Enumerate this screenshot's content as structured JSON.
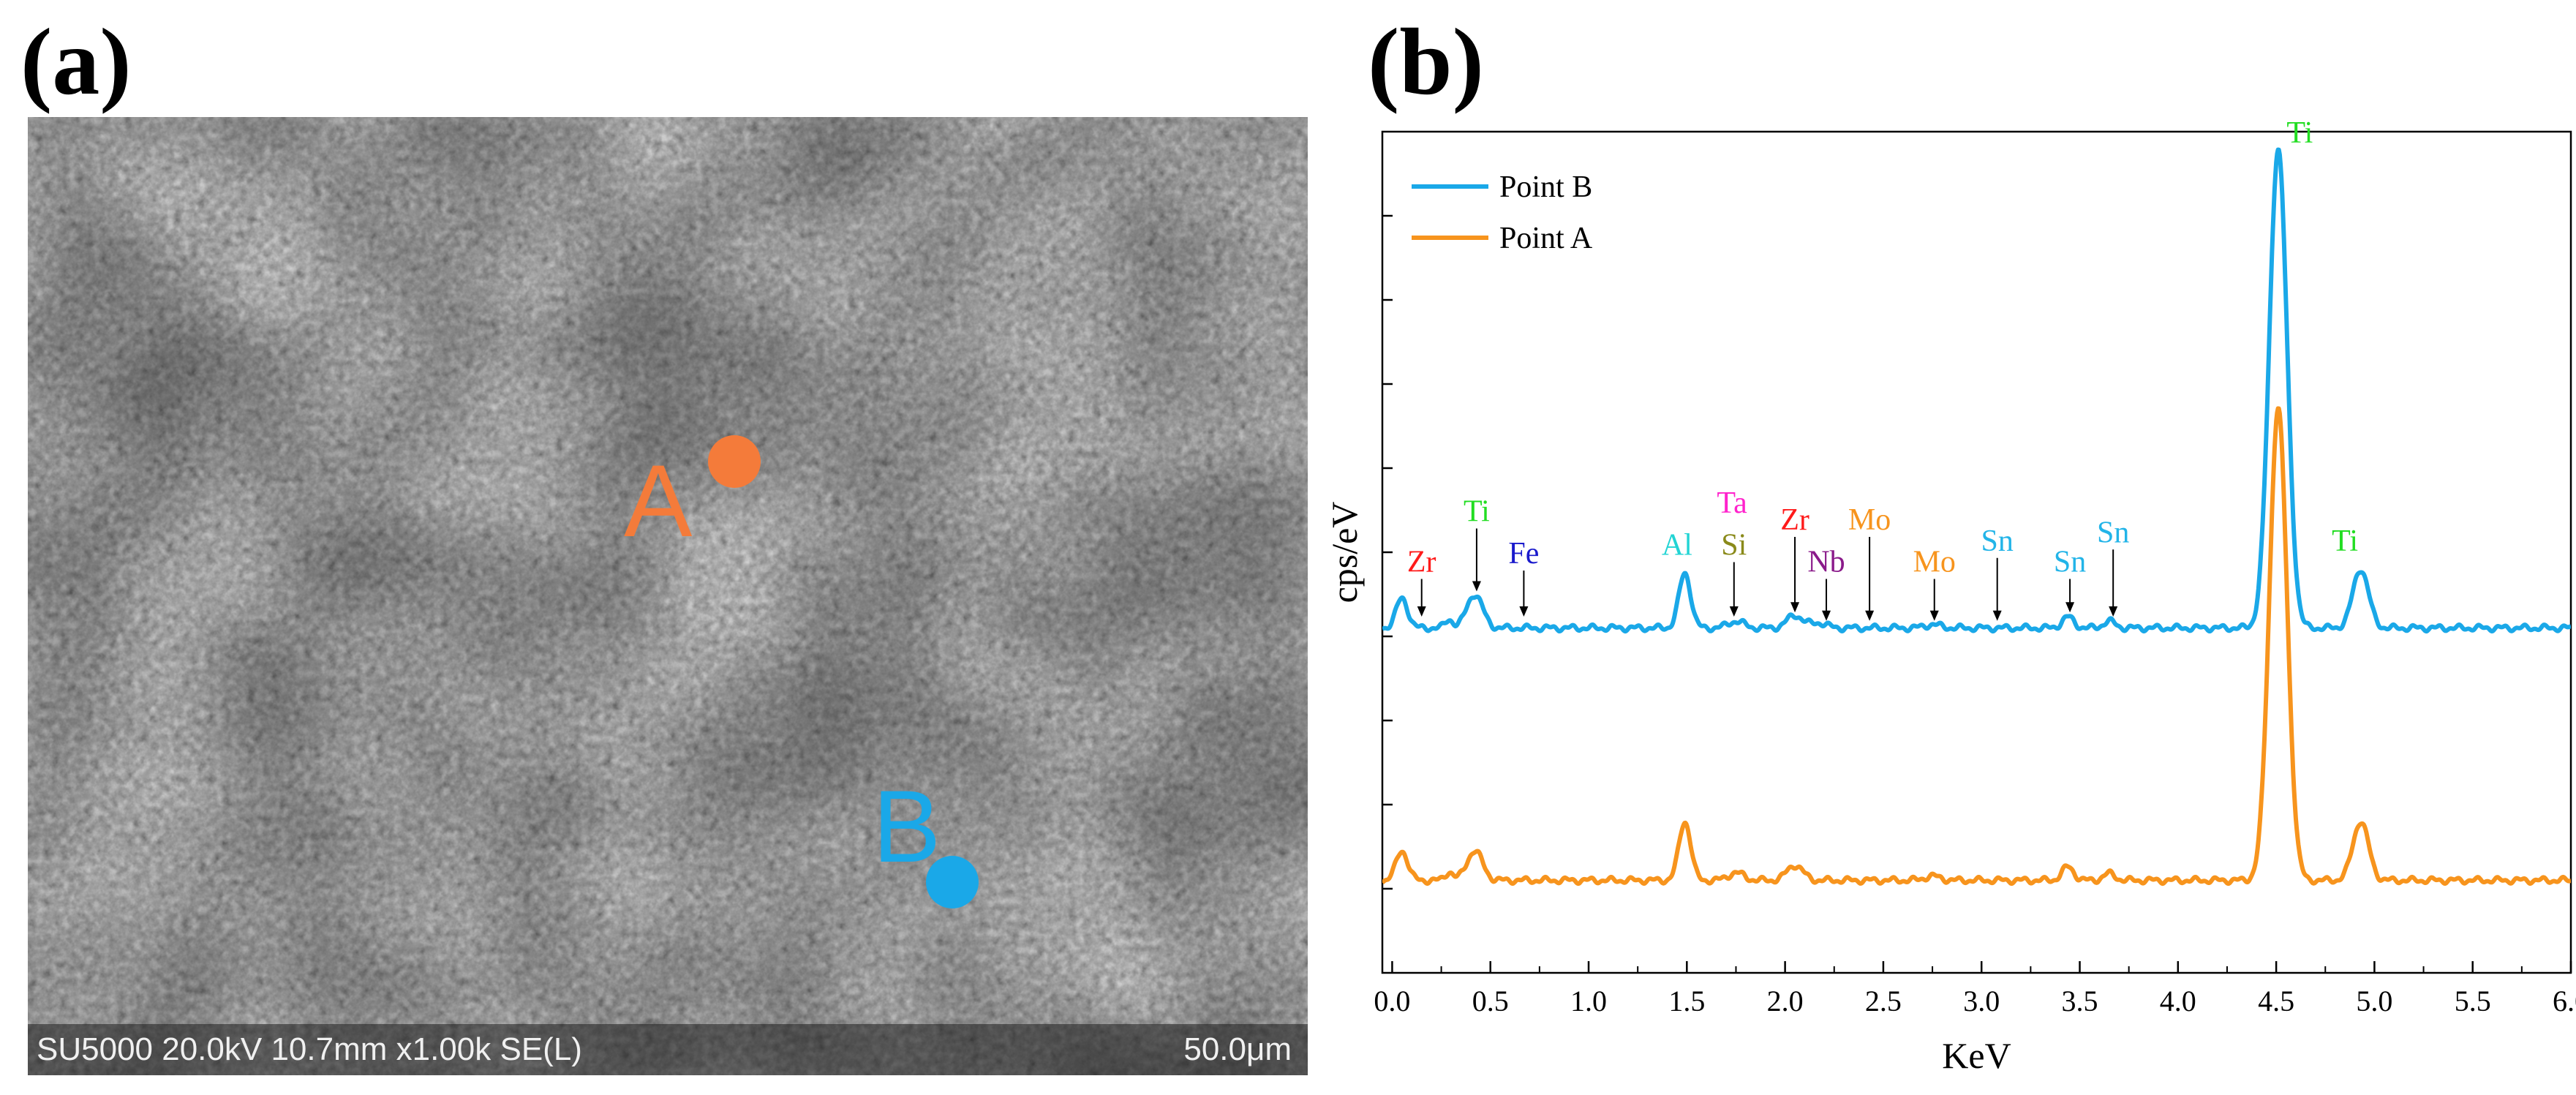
{
  "panels": {
    "a": "(a)",
    "b": "(b)"
  },
  "sem": {
    "info_text": "SU5000 20.0kV 10.7mm x1.00k SE(L)",
    "scale_text": "50.0μm",
    "points": [
      {
        "name": "A",
        "color": "#f47b3a"
      },
      {
        "name": "B",
        "color": "#1aa8e8"
      }
    ]
  },
  "chart_data": {
    "type": "line",
    "title": "",
    "xlabel": "KeV",
    "ylabel": "cps/eV",
    "xlim": [
      -0.05,
      6.0
    ],
    "ylim": [
      0,
      100
    ],
    "x_ticks": [
      0.0,
      0.5,
      1.0,
      1.5,
      2.0,
      2.5,
      3.0,
      3.5,
      4.0,
      4.5,
      5.0,
      5.5,
      6.0
    ],
    "x_tick_labels": [
      "0.0",
      "0.5",
      "1.0",
      "1.5",
      "2.0",
      "2.5",
      "3.0",
      "3.5",
      "4.0",
      "4.5",
      "5.0",
      "5.5",
      "6.0"
    ],
    "legend": [
      {
        "name": "Point B",
        "color": "#1aa8e8"
      },
      {
        "name": "Point A",
        "color": "#f7941d"
      }
    ],
    "series": [
      {
        "name": "Point B",
        "color": "#1aa8e8",
        "baseline": 41,
        "peaks": [
          {
            "center": 0.05,
            "height": 3.5,
            "width": 0.03
          },
          {
            "center": 0.29,
            "height": 1.0,
            "width": 0.02
          },
          {
            "center": 0.42,
            "height": 4.0,
            "width": 0.04
          },
          {
            "center": 1.49,
            "height": 6.5,
            "width": 0.03
          },
          {
            "center": 1.75,
            "height": 0.8,
            "width": 0.04
          },
          {
            "center": 2.05,
            "height": 1.5,
            "width": 0.04
          },
          {
            "center": 2.17,
            "height": 0.6,
            "width": 0.04
          },
          {
            "center": 2.75,
            "height": 0.4,
            "width": 0.04
          },
          {
            "center": 3.44,
            "height": 1.3,
            "width": 0.03
          },
          {
            "center": 3.65,
            "height": 0.8,
            "width": 0.03
          },
          {
            "center": 4.51,
            "height": 57,
            "width": 0.045
          },
          {
            "center": 4.93,
            "height": 7.0,
            "width": 0.04
          }
        ]
      },
      {
        "name": "Point A",
        "color": "#f7941d",
        "baseline": 11,
        "peaks": [
          {
            "center": 0.05,
            "height": 3.5,
            "width": 0.03
          },
          {
            "center": 0.29,
            "height": 1.0,
            "width": 0.02
          },
          {
            "center": 0.42,
            "height": 3.5,
            "width": 0.04
          },
          {
            "center": 1.49,
            "height": 7.0,
            "width": 0.03
          },
          {
            "center": 1.75,
            "height": 0.9,
            "width": 0.04
          },
          {
            "center": 2.05,
            "height": 1.8,
            "width": 0.04
          },
          {
            "center": 2.75,
            "height": 0.5,
            "width": 0.04
          },
          {
            "center": 3.44,
            "height": 1.6,
            "width": 0.03
          },
          {
            "center": 3.65,
            "height": 0.8,
            "width": 0.03
          },
          {
            "center": 4.51,
            "height": 56,
            "width": 0.045
          },
          {
            "center": 4.93,
            "height": 7.0,
            "width": 0.04
          }
        ]
      }
    ],
    "annotations": [
      {
        "text": "Zr",
        "x": 0.15,
        "y": 42,
        "label_y": 47,
        "color": "#ff1a1a",
        "arrow": true
      },
      {
        "text": "Ti",
        "x": 0.43,
        "y": 45,
        "label_y": 53,
        "color": "#22dd22",
        "arrow": true
      },
      {
        "text": "Fe",
        "x": 0.67,
        "y": 42,
        "label_y": 48,
        "color": "#1a1acc",
        "arrow": true
      },
      {
        "text": "Al",
        "x": 1.45,
        "y": 49,
        "label_y": 49,
        "color": "#22d4d4",
        "arrow": false
      },
      {
        "text": "Ta",
        "x": 1.73,
        "y": 54,
        "label_y": 54,
        "color": "#ff22cc",
        "arrow": false
      },
      {
        "text": "Si",
        "x": 1.74,
        "y": 42,
        "label_y": 49,
        "color": "#8a8a1a",
        "arrow": true
      },
      {
        "text": "Zr",
        "x": 2.05,
        "y": 42.5,
        "label_y": 52,
        "color": "#ff1a1a",
        "arrow": true
      },
      {
        "text": "Nb",
        "x": 2.21,
        "y": 41.5,
        "label_y": 47,
        "color": "#8a1a8a",
        "arrow": true
      },
      {
        "text": "Mo",
        "x": 2.43,
        "y": 41.5,
        "label_y": 52,
        "color": "#f7941d",
        "arrow": true
      },
      {
        "text": "Mo",
        "x": 2.76,
        "y": 41.5,
        "label_y": 47,
        "color": "#f7941d",
        "arrow": true
      },
      {
        "text": "Sn",
        "x": 3.08,
        "y": 41.5,
        "label_y": 49.5,
        "color": "#22b4e8",
        "arrow": true
      },
      {
        "text": "Sn",
        "x": 3.45,
        "y": 42.5,
        "label_y": 47,
        "color": "#22b4e8",
        "arrow": true
      },
      {
        "text": "Sn",
        "x": 3.67,
        "y": 42,
        "label_y": 50.5,
        "color": "#22b4e8",
        "arrow": true
      },
      {
        "text": "Ti",
        "x": 4.62,
        "y": 98,
        "label_y": 98,
        "color": "#22dd22",
        "arrow": false
      },
      {
        "text": "Ti",
        "x": 4.85,
        "y": 49.5,
        "label_y": 49.5,
        "color": "#22dd22",
        "arrow": false
      }
    ]
  }
}
